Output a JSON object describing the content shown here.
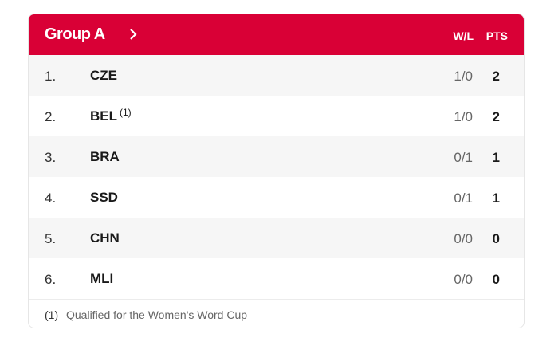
{
  "header": {
    "title": "Group A",
    "col_wl": "W/L",
    "col_pts": "PTS",
    "accent": "#d90036"
  },
  "rows": [
    {
      "rank": "1.",
      "team": "CZE",
      "note": "",
      "wl": "1/0",
      "pts": "2"
    },
    {
      "rank": "2.",
      "team": "BEL",
      "note": "(1)",
      "wl": "1/0",
      "pts": "2"
    },
    {
      "rank": "3.",
      "team": "BRA",
      "note": "",
      "wl": "0/1",
      "pts": "1"
    },
    {
      "rank": "4.",
      "team": "SSD",
      "note": "",
      "wl": "0/1",
      "pts": "1"
    },
    {
      "rank": "5.",
      "team": "CHN",
      "note": "",
      "wl": "0/0",
      "pts": "0"
    },
    {
      "rank": "6.",
      "team": "MLI",
      "note": "",
      "wl": "0/0",
      "pts": "0"
    }
  ],
  "footer": {
    "mark": "(1)",
    "text": "Qualified for the Women's Word Cup"
  }
}
